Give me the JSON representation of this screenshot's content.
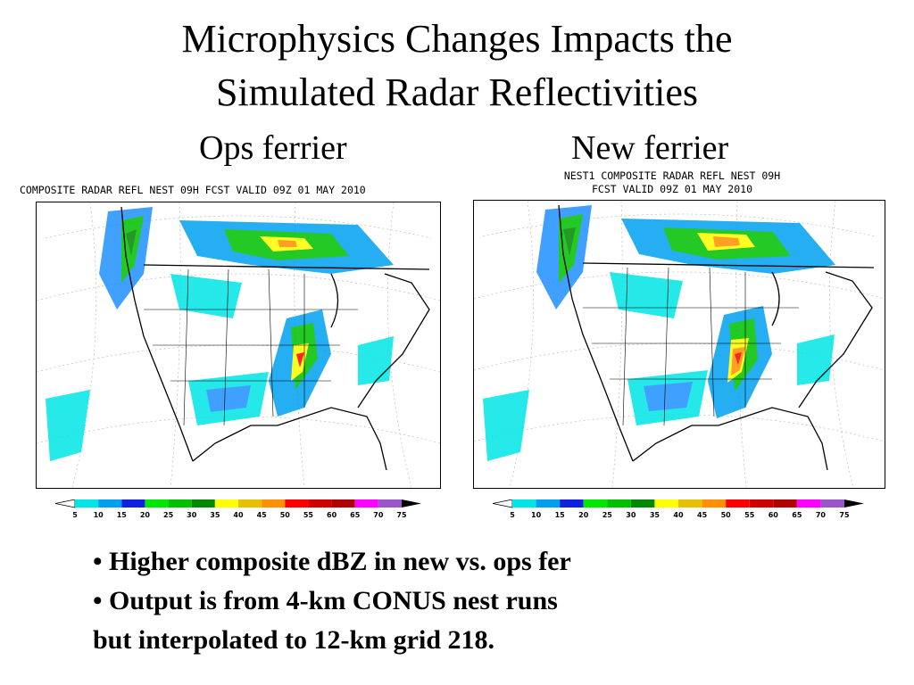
{
  "title_line1": "Microphysics Changes Impacts the",
  "title_line2": "Simulated Radar Reflectivities",
  "panels": [
    {
      "heading": "Ops ferrier",
      "map_title": "COMPOSITE RADAR REFL NEST 09H FCST VALID 09Z 01 MAY 2010"
    },
    {
      "heading": "New ferrier",
      "map_title_line1": "NEST1 COMPOSITE RADAR REFL NEST 09H",
      "map_title_line2": "FCST VALID 09Z 01 MAY 2010"
    }
  ],
  "colorbar": {
    "labels": [
      "5",
      "10",
      "15",
      "20",
      "25",
      "30",
      "35",
      "40",
      "45",
      "50",
      "55",
      "60",
      "65",
      "70",
      "75"
    ],
    "colors": [
      "#00e5e5",
      "#00a0f0",
      "#1020e0",
      "#00e800",
      "#00c000",
      "#008800",
      "#ffff00",
      "#e7c000",
      "#ff9000",
      "#ff0000",
      "#d00000",
      "#b00000",
      "#ff00ff",
      "#9955c9"
    ]
  },
  "bullets": [
    {
      "marker": "•",
      "text": "Higher composite dBZ in new vs. ops fer"
    },
    {
      "marker": "•",
      "text": "Output is from 4-km CONUS nest runs"
    },
    {
      "marker": "",
      "text": "but interpolated to 12-km grid 218."
    }
  ]
}
